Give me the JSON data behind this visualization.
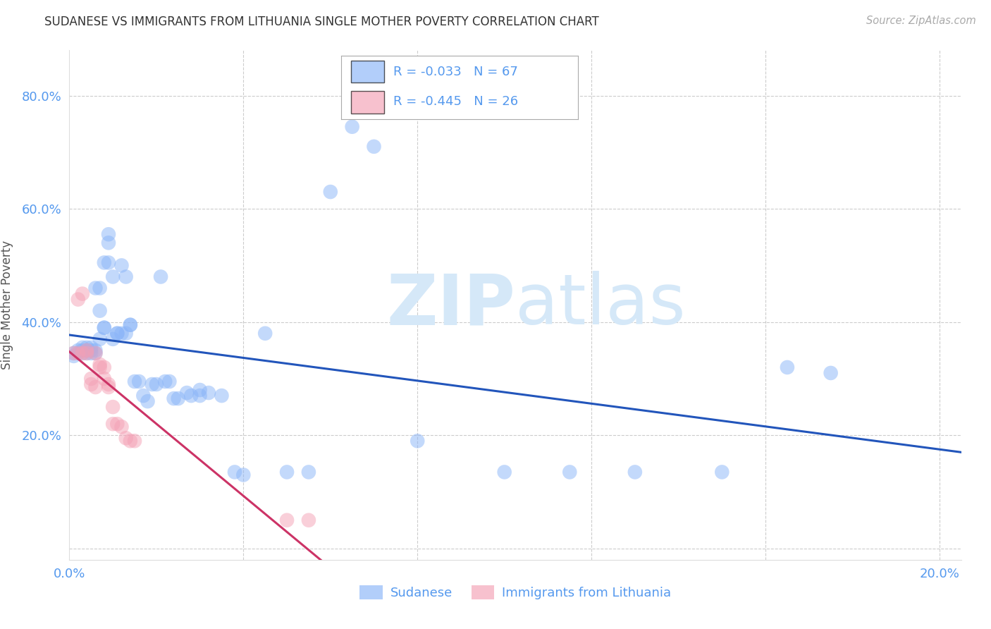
{
  "title": "SUDANESE VS IMMIGRANTS FROM LITHUANIA SINGLE MOTHER POVERTY CORRELATION CHART",
  "source": "Source: ZipAtlas.com",
  "ylabel": "Single Mother Poverty",
  "xlim": [
    0.0,
    0.205
  ],
  "ylim": [
    -0.02,
    0.88
  ],
  "color_blue": "#89b4f8",
  "color_pink": "#f4a0b5",
  "color_blue_line": "#2255bb",
  "color_pink_line": "#cc3366",
  "color_axis": "#5599ee",
  "watermark_color": "#d5e8f8",
  "legend_r1": "-0.033",
  "legend_n1": "67",
  "legend_r2": "-0.445",
  "legend_n2": "26",
  "sudanese_x": [
    0.001,
    0.001,
    0.002,
    0.002,
    0.003,
    0.003,
    0.003,
    0.004,
    0.004,
    0.004,
    0.005,
    0.005,
    0.005,
    0.006,
    0.006,
    0.006,
    0.007,
    0.007,
    0.007,
    0.008,
    0.008,
    0.008,
    0.009,
    0.009,
    0.009,
    0.01,
    0.01,
    0.011,
    0.011,
    0.012,
    0.012,
    0.013,
    0.013,
    0.014,
    0.014,
    0.015,
    0.016,
    0.017,
    0.018,
    0.019,
    0.02,
    0.021,
    0.022,
    0.023,
    0.024,
    0.025,
    0.027,
    0.028,
    0.03,
    0.03,
    0.032,
    0.035,
    0.038,
    0.04,
    0.045,
    0.05,
    0.055,
    0.06,
    0.065,
    0.07,
    0.08,
    0.1,
    0.115,
    0.13,
    0.15,
    0.165,
    0.175
  ],
  "sudanese_y": [
    0.34,
    0.345,
    0.345,
    0.35,
    0.345,
    0.35,
    0.355,
    0.345,
    0.35,
    0.355,
    0.345,
    0.35,
    0.355,
    0.345,
    0.35,
    0.46,
    0.46,
    0.37,
    0.42,
    0.39,
    0.39,
    0.505,
    0.505,
    0.555,
    0.54,
    0.37,
    0.48,
    0.38,
    0.38,
    0.5,
    0.38,
    0.38,
    0.48,
    0.395,
    0.395,
    0.295,
    0.295,
    0.27,
    0.26,
    0.29,
    0.29,
    0.48,
    0.295,
    0.295,
    0.265,
    0.265,
    0.275,
    0.27,
    0.28,
    0.27,
    0.275,
    0.27,
    0.135,
    0.13,
    0.38,
    0.135,
    0.135,
    0.63,
    0.745,
    0.71,
    0.19,
    0.135,
    0.135,
    0.135,
    0.135,
    0.32,
    0.31
  ],
  "lithuania_x": [
    0.001,
    0.002,
    0.002,
    0.003,
    0.003,
    0.004,
    0.004,
    0.005,
    0.005,
    0.006,
    0.006,
    0.007,
    0.007,
    0.008,
    0.008,
    0.009,
    0.009,
    0.01,
    0.01,
    0.011,
    0.012,
    0.013,
    0.014,
    0.015,
    0.05,
    0.055
  ],
  "lithuania_y": [
    0.345,
    0.345,
    0.44,
    0.345,
    0.45,
    0.345,
    0.35,
    0.3,
    0.29,
    0.285,
    0.345,
    0.325,
    0.32,
    0.32,
    0.3,
    0.29,
    0.285,
    0.25,
    0.22,
    0.22,
    0.215,
    0.195,
    0.19,
    0.19,
    0.05,
    0.05
  ]
}
